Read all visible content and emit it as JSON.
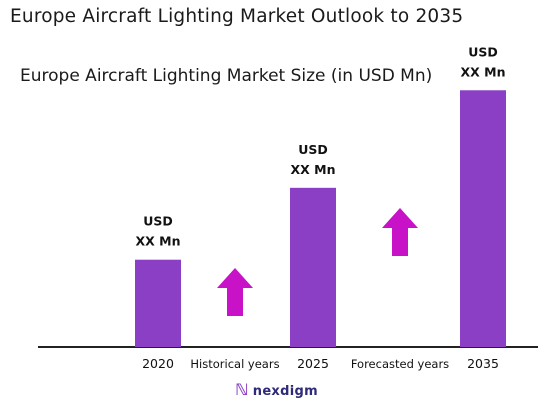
{
  "title": "Europe Aircraft Lighting Market Outlook to 2035",
  "brand": {
    "name": "nexdigm",
    "icon": "nexdigm-logo-icon"
  },
  "colors": {
    "bar": "#8a3fc4",
    "arrow": "#c812c8",
    "axis": "#222222",
    "text": "#111111"
  },
  "chart_data": {
    "type": "bar",
    "title": "Europe Aircraft Lighting Market Size (in USD Mn)",
    "categories": [
      "2020",
      "2025",
      "2035"
    ],
    "values": [
      85,
      155,
      250
    ],
    "value_labels": [
      [
        "USD",
        "XX Mn"
      ],
      [
        "USD",
        "XX Mn"
      ],
      [
        "USD",
        "XX Mn"
      ]
    ],
    "period_labels": [
      "Historical years",
      "Forecasted years"
    ],
    "arrows": [
      "up",
      "up"
    ],
    "ylim": [
      0,
      260
    ],
    "grid": false,
    "legend": "none"
  }
}
